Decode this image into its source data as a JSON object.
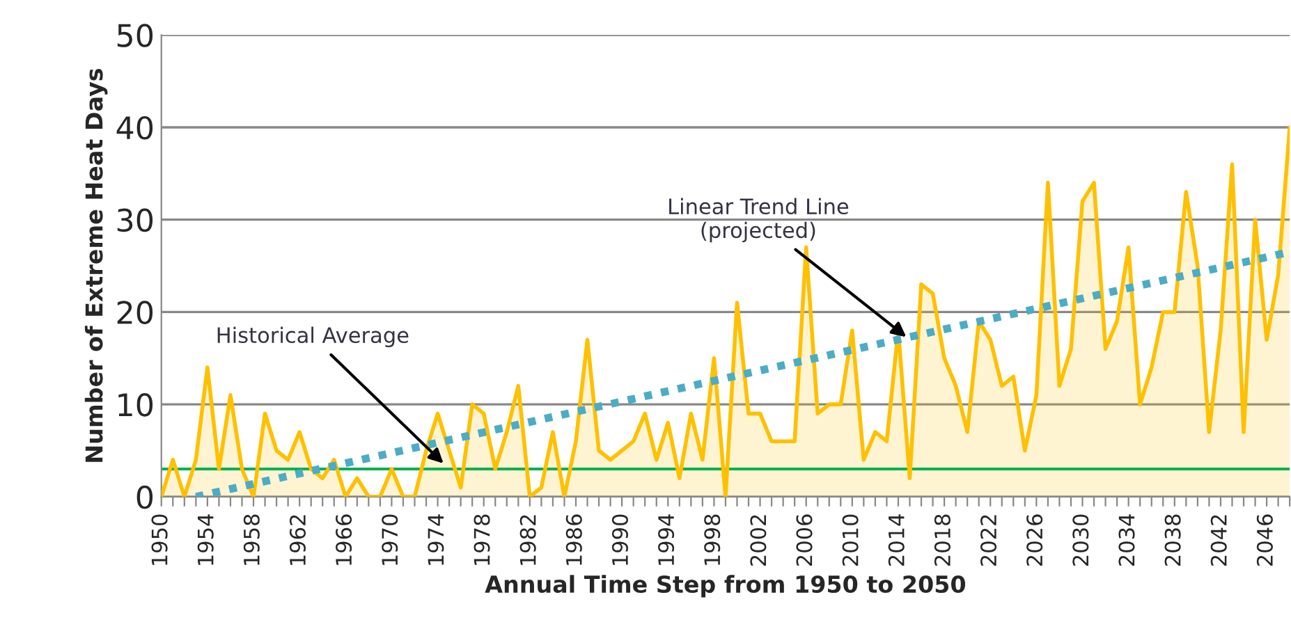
{
  "chart_data": {
    "type": "area",
    "xlabel": "Annual Time Step from 1950 to 2050",
    "ylabel": "Number of Extreme Heat Days",
    "xlim": [
      1950,
      2048
    ],
    "ylim": [
      0,
      50
    ],
    "yticks": [
      0,
      10,
      20,
      30,
      40,
      50
    ],
    "xticks": [
      1950,
      {
        "value": 1951,
        "label": null
      },
      {
        "value": 1952,
        "label": null
      },
      {
        "value": 1953,
        "label": null
      },
      1954,
      {
        "value": 1955,
        "label": null
      },
      {
        "value": 1956,
        "label": null
      },
      {
        "value": 1957,
        "label": null
      },
      1958,
      {
        "value": 1959,
        "label": null
      },
      {
        "value": 1960,
        "label": null
      },
      {
        "value": 1961,
        "label": null
      },
      1962,
      {
        "value": 1963,
        "label": null
      },
      {
        "value": 1964,
        "label": null
      },
      {
        "value": 1965,
        "label": null
      },
      1966,
      {
        "value": 1967,
        "label": null
      },
      {
        "value": 1968,
        "label": null
      },
      {
        "value": 1969,
        "label": null
      },
      1970,
      {
        "value": 1971,
        "label": null
      },
      {
        "value": 1972,
        "label": null
      },
      {
        "value": 1973,
        "label": null
      },
      1974,
      {
        "value": 1975,
        "label": null
      },
      {
        "value": 1976,
        "label": null
      },
      {
        "value": 1977,
        "label": null
      },
      1978,
      {
        "value": 1979,
        "label": null
      },
      {
        "value": 1980,
        "label": null
      },
      {
        "value": 1981,
        "label": null
      },
      1982,
      {
        "value": 1983,
        "label": null
      },
      {
        "value": 1984,
        "label": null
      },
      {
        "value": 1985,
        "label": null
      },
      1986,
      {
        "value": 1987,
        "label": null
      },
      {
        "value": 1988,
        "label": null
      },
      {
        "value": 1989,
        "label": null
      },
      1990,
      {
        "value": 1991,
        "label": null
      },
      {
        "value": 1992,
        "label": null
      },
      {
        "value": 1993,
        "label": null
      },
      1994,
      {
        "value": 1995,
        "label": null
      },
      {
        "value": 1996,
        "label": null
      },
      {
        "value": 1997,
        "label": null
      },
      1998,
      {
        "value": 1999,
        "label": null
      },
      {
        "value": 2000,
        "label": null
      },
      {
        "value": 2001,
        "label": null
      },
      2002,
      {
        "value": 2003,
        "label": null
      },
      {
        "value": 2004,
        "label": null
      },
      {
        "value": 2005,
        "label": null
      },
      2006,
      {
        "value": 2007,
        "label": null
      },
      {
        "value": 2008,
        "label": null
      },
      {
        "value": 2009,
        "label": null
      },
      2010,
      {
        "value": 2011,
        "label": null
      },
      {
        "value": 2012,
        "label": null
      },
      {
        "value": 2013,
        "label": null
      },
      2014,
      {
        "value": 2015,
        "label": null
      },
      {
        "value": 2016,
        "label": null
      },
      {
        "value": 2017,
        "label": null
      },
      2018,
      {
        "value": 2019,
        "label": null
      },
      {
        "value": 2020,
        "label": null
      },
      {
        "value": 2021,
        "label": null
      },
      2022,
      {
        "value": 2023,
        "label": null
      },
      {
        "value": 2024,
        "label": null
      },
      {
        "value": 2025,
        "label": null
      },
      2026,
      {
        "value": 2027,
        "label": null
      },
      {
        "value": 2028,
        "label": null
      },
      {
        "value": 2029,
        "label": null
      },
      2030,
      {
        "value": 2031,
        "label": null
      },
      {
        "value": 2032,
        "label": null
      },
      {
        "value": 2033,
        "label": null
      },
      2034,
      {
        "value": 2035,
        "label": null
      },
      {
        "value": 2036,
        "label": null
      },
      {
        "value": 2037,
        "label": null
      },
      2038,
      {
        "value": 2039,
        "label": null
      },
      {
        "value": 2040,
        "label": null
      },
      {
        "value": 2041,
        "label": null
      },
      2042,
      {
        "value": 2043,
        "label": null
      },
      {
        "value": 2044,
        "label": null
      },
      {
        "value": 2045,
        "label": null
      },
      2046,
      {
        "value": 2047,
        "label": null
      },
      {
        "value": 2048,
        "label": null
      }
    ],
    "grid": "y",
    "legend": false,
    "x": [
      1950,
      1951,
      1952,
      1953,
      1954,
      1955,
      1956,
      1957,
      1958,
      1959,
      1960,
      1961,
      1962,
      1963,
      1964,
      1965,
      1966,
      1967,
      1968,
      1969,
      1970,
      1971,
      1972,
      1973,
      1974,
      1975,
      1976,
      1977,
      1978,
      1979,
      1980,
      1981,
      1982,
      1983,
      1984,
      1985,
      1986,
      1987,
      1988,
      1989,
      1990,
      1991,
      1992,
      1993,
      1994,
      1995,
      1996,
      1997,
      1998,
      1999,
      2000,
      2001,
      2002,
      2003,
      2004,
      2005,
      2006,
      2007,
      2008,
      2009,
      2010,
      2011,
      2012,
      2013,
      2014,
      2015,
      2016,
      2017,
      2018,
      2019,
      2020,
      2021,
      2022,
      2023,
      2024,
      2025,
      2026,
      2027,
      2028,
      2029,
      2030,
      2031,
      2032,
      2033,
      2034,
      2035,
      2036,
      2037,
      2038,
      2039,
      2040,
      2041,
      2042,
      2043,
      2044,
      2045,
      2046,
      2047,
      2048
    ],
    "series": [
      {
        "color": "#ffc000",
        "values": [
          0,
          4,
          0,
          4,
          14,
          3,
          11,
          3,
          0,
          9,
          5,
          4,
          7,
          3,
          2,
          4,
          0,
          2,
          0,
          0,
          3,
          0,
          0,
          5,
          9,
          5,
          1,
          10,
          9,
          3,
          7,
          12,
          0,
          1,
          7,
          0,
          6,
          17,
          5,
          4,
          5,
          6,
          9,
          4,
          8,
          2,
          9,
          4,
          15,
          0,
          21,
          9,
          9,
          6,
          6,
          6,
          27,
          9,
          10,
          10,
          18,
          4,
          7,
          6,
          18,
          2,
          23,
          22,
          15,
          12,
          7,
          19,
          17,
          12,
          13,
          5,
          11,
          34,
          12,
          16,
          32,
          34,
          16,
          19,
          27,
          10,
          14,
          20,
          20,
          33,
          25,
          7,
          18,
          36,
          7,
          30,
          17,
          24,
          40
        ]
      },
      {
        "type": "line",
        "color": "#4bacc6",
        "line_style": "dotted",
        "x": [
          1953,
          2048
        ],
        "values": [
          0,
          26.5
        ]
      }
    ],
    "ref_lines": [
      {
        "axis": "y",
        "value": 3,
        "color": "#00b050"
      }
    ],
    "annotations": [
      {
        "text": "Historical Average",
        "x": 1974.5,
        "y": 3.6
      },
      {
        "text": "Linear Trend Line\n(projected)",
        "x": 2014.7,
        "y": 17.3
      }
    ]
  }
}
